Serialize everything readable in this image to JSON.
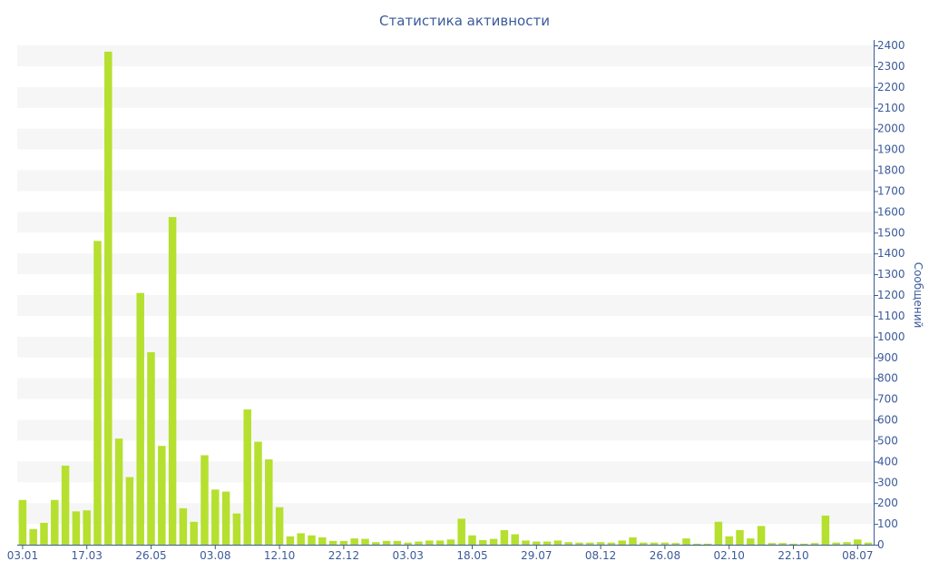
{
  "chart_data": {
    "type": "bar",
    "title": "Статистика активности",
    "ylabel": "Сообщений",
    "ylim": [
      0,
      2400
    ],
    "yticks": [
      0,
      100,
      200,
      300,
      400,
      500,
      600,
      700,
      800,
      900,
      1000,
      1100,
      1200,
      1300,
      1400,
      1500,
      1600,
      1700,
      1800,
      1900,
      2000,
      2100,
      2200,
      2300,
      2400
    ],
    "x_tick_labels": [
      "03.01",
      "17.03",
      "26.05",
      "03.08",
      "12.10",
      "22.12",
      "03.03",
      "18.05",
      "29.07",
      "08.12",
      "26.08",
      "02.10",
      "22.10",
      "08.07"
    ],
    "x_tick_positions": [
      0,
      6,
      12,
      18,
      24,
      30,
      36,
      42,
      48,
      54,
      60,
      66,
      72,
      78
    ],
    "values": [
      215,
      75,
      105,
      215,
      380,
      160,
      165,
      1460,
      2370,
      510,
      325,
      1210,
      925,
      475,
      1575,
      175,
      110,
      430,
      265,
      255,
      150,
      650,
      495,
      410,
      180,
      40,
      55,
      45,
      35,
      18,
      18,
      30,
      28,
      12,
      18,
      18,
      10,
      15,
      20,
      20,
      25,
      125,
      45,
      22,
      28,
      70,
      50,
      20,
      15,
      15,
      20,
      12,
      10,
      10,
      12,
      10,
      20,
      35,
      10,
      10,
      10,
      8,
      30,
      5,
      5,
      110,
      40,
      70,
      30,
      90,
      8,
      8,
      5,
      5,
      8,
      140,
      10,
      12,
      25,
      10
    ],
    "bar_color": "#b5e02f",
    "grid": "horizontal alternating bands",
    "axis_color": "#3b5a9a"
  }
}
